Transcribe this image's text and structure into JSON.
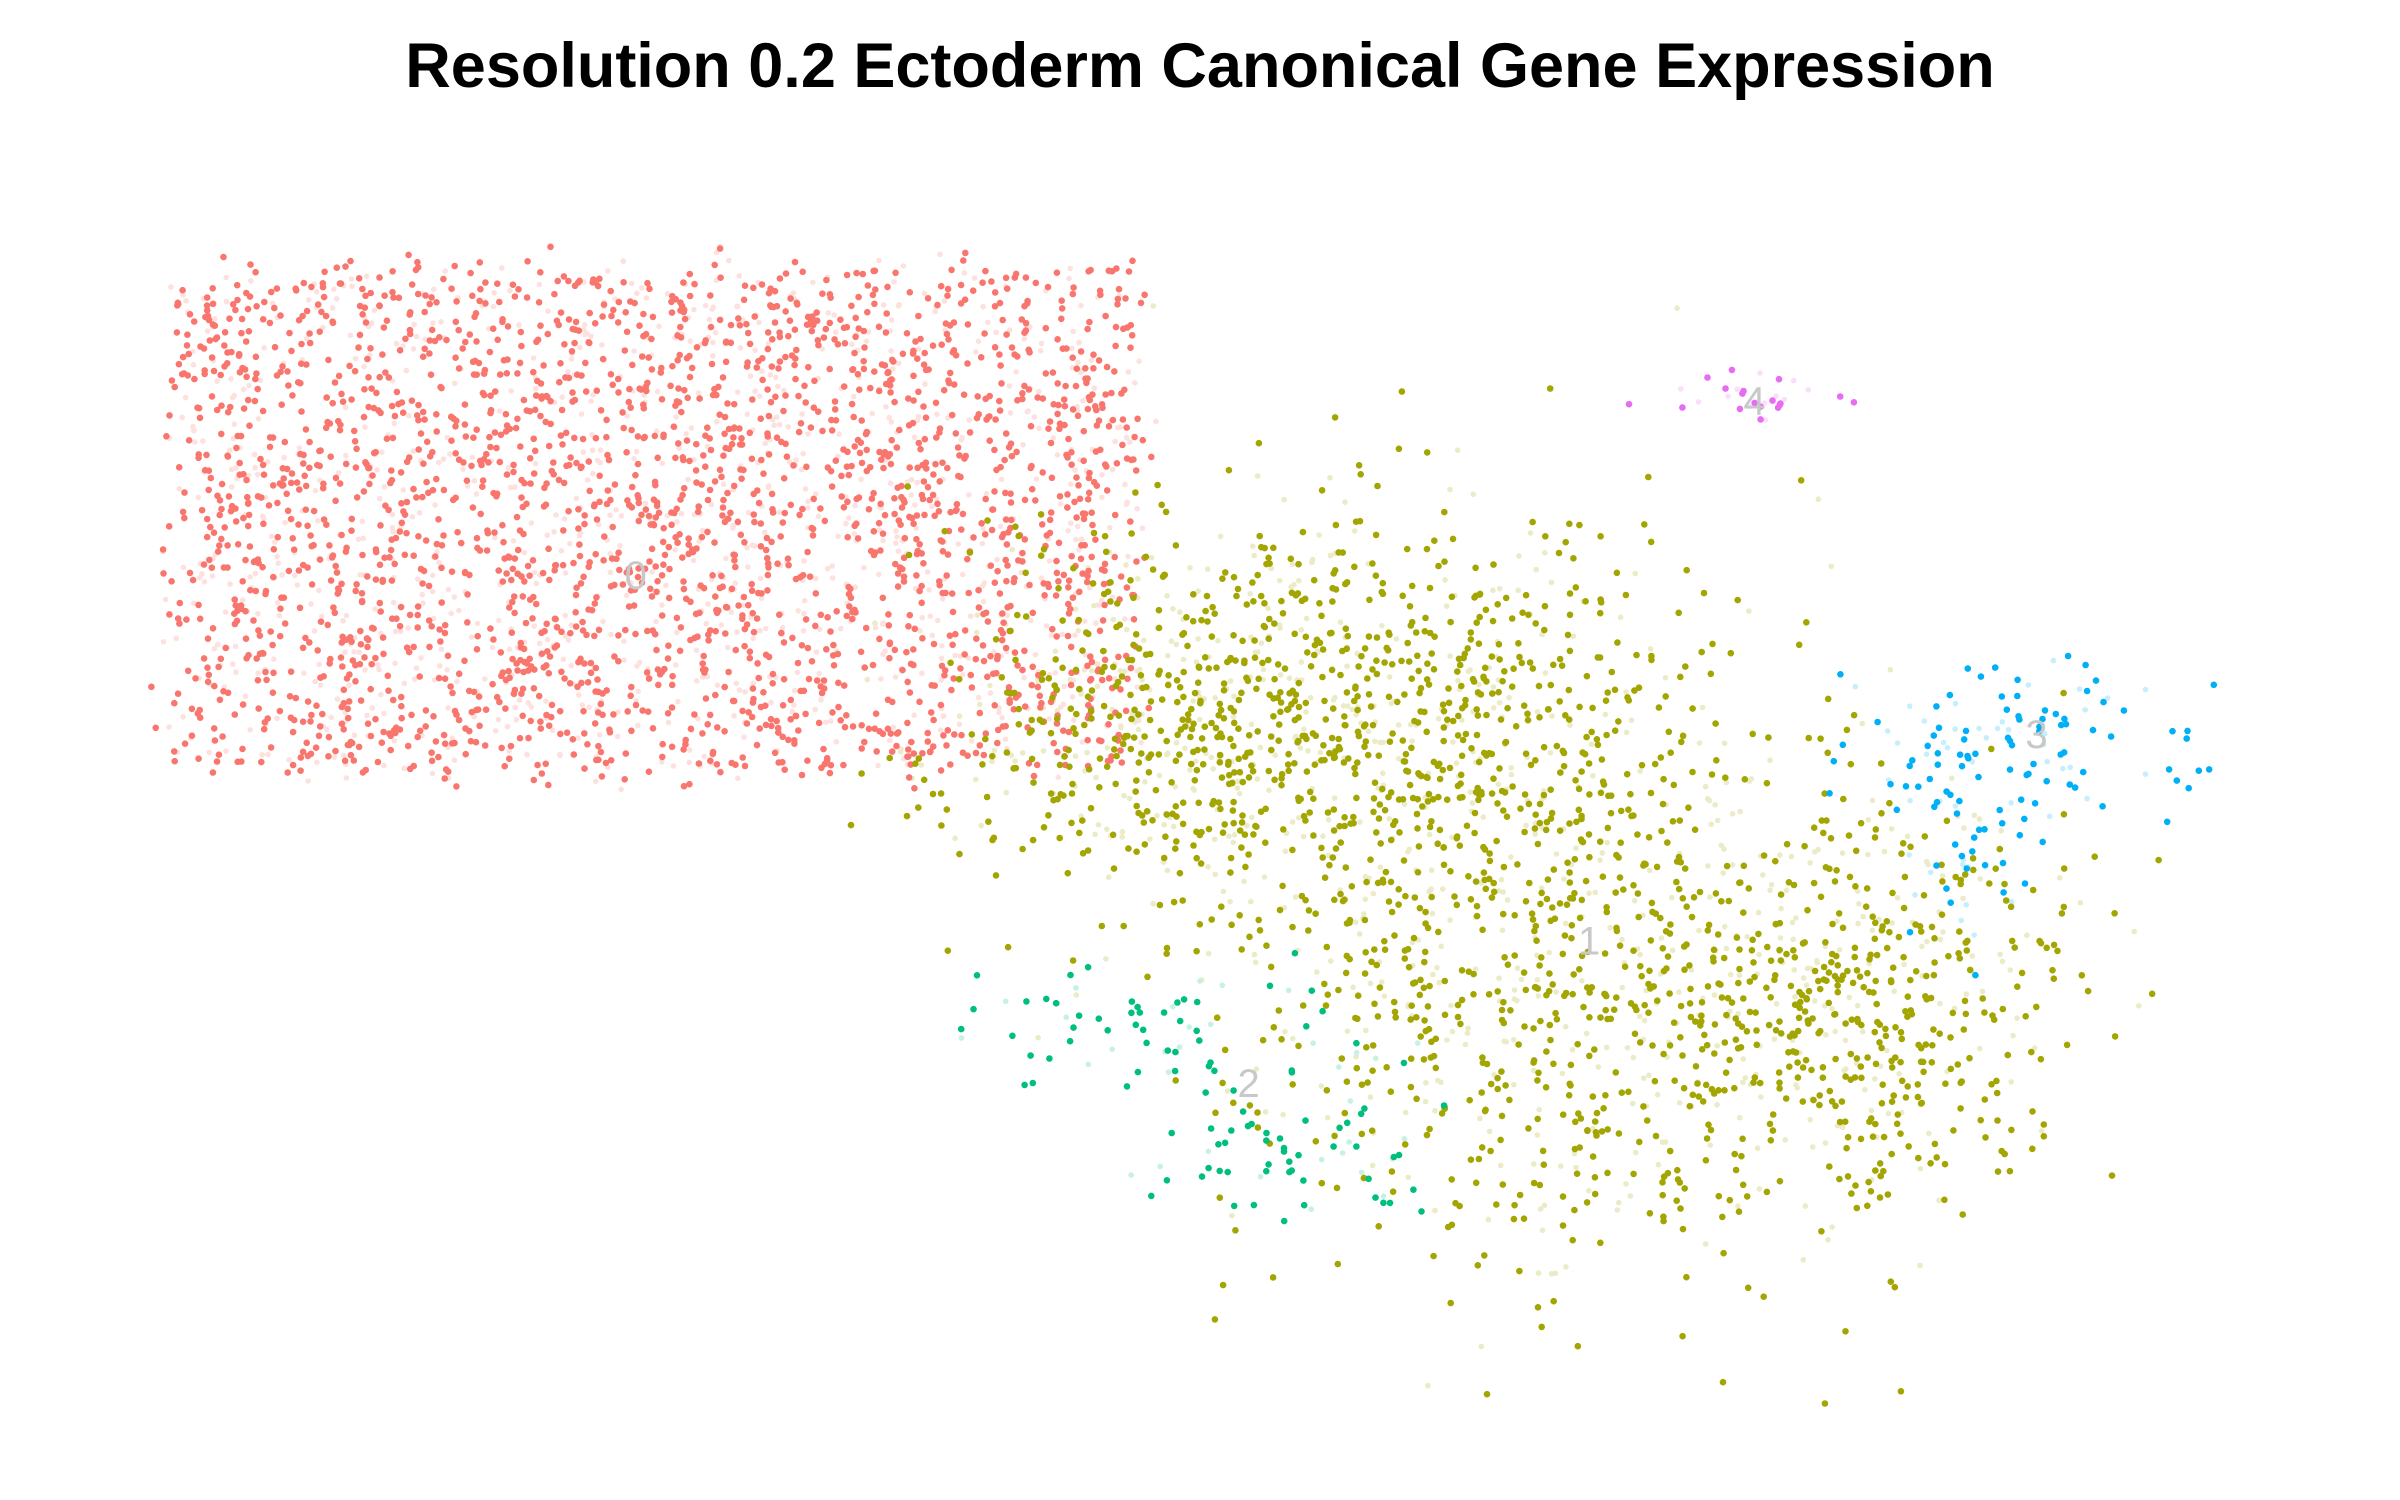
{
  "chart_data": {
    "type": "scatter",
    "title": "Resolution 0.2 Ectoderm Canonical Gene Expression",
    "xlabel": "",
    "ylabel": "",
    "axes_visible": false,
    "grid": false,
    "legend": "none",
    "xlim": [
      -10,
      12
    ],
    "ylim": [
      -8,
      8
    ],
    "clusters": [
      {
        "label": "0",
        "color": "#F8766D",
        "label_pos": [
          -4.8,
          2.6
        ],
        "n_points": 3400,
        "regions": [
          {
            "x": [
              -9.5,
              0.3
            ],
            "y": [
              0.2,
              6.5
            ],
            "weight": 1.0
          }
        ]
      },
      {
        "label": "1",
        "color": "#A3A500",
        "label_pos": [
          5.0,
          -2.0
        ],
        "n_points": 2600,
        "regions": [
          {
            "x": 0.8,
            "y": 0.8,
            "sx": 1.3,
            "sy": 1.2,
            "weight": 0.22
          },
          {
            "x": 3.2,
            "y": 1.0,
            "sx": 1.6,
            "sy": 1.4,
            "weight": 0.25
          },
          {
            "x": 4.8,
            "y": -2.5,
            "sx": 1.8,
            "sy": 1.8,
            "weight": 0.35
          },
          {
            "x": 7.8,
            "y": -2.8,
            "sx": 1.1,
            "sy": 1.3,
            "weight": 0.18
          }
        ]
      },
      {
        "label": "2",
        "color": "#00BF7D",
        "label_pos": [
          1.5,
          -3.8
        ],
        "n_points": 130,
        "regions": [
          {
            "x": 0.4,
            "y": -3.0,
            "sx": 1.1,
            "sy": 0.4,
            "weight": 0.55
          },
          {
            "x": 1.8,
            "y": -4.6,
            "sx": 0.8,
            "sy": 0.4,
            "weight": 0.45
          }
        ]
      },
      {
        "label": "3",
        "color": "#00B0F6",
        "label_pos": [
          9.6,
          0.6
        ],
        "n_points": 150,
        "regions": [
          {
            "x": 9.6,
            "y": 0.6,
            "sx": 0.9,
            "sy": 0.5,
            "weight": 0.7
          },
          {
            "x": 8.8,
            "y": -0.6,
            "sx": 0.4,
            "sy": 0.7,
            "weight": 0.3
          }
        ]
      },
      {
        "label": "4",
        "color": "#E76BF3",
        "label_pos": [
          6.7,
          4.8
        ],
        "n_points": 30,
        "regions": [
          {
            "x": 6.7,
            "y": 4.9,
            "sx": 0.4,
            "sy": 0.15,
            "weight": 1.0
          }
        ]
      }
    ]
  }
}
